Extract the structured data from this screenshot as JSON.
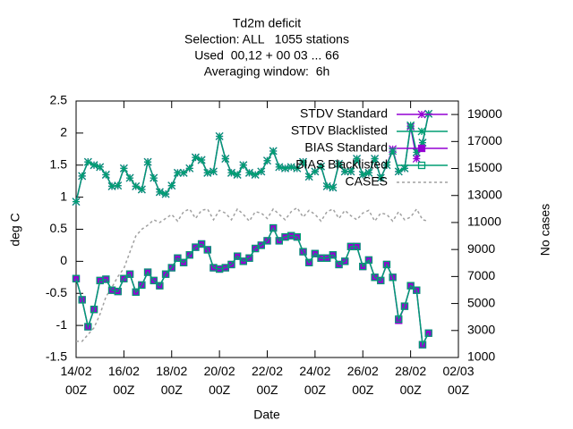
{
  "chart_data": {
    "type": "line",
    "title": [
      "Td2m deficit",
      "Selection: ALL   1055 stations",
      "Used  00,12 + 00 03 ... 66",
      "Averaging window:  6h"
    ],
    "xlabel": "Date",
    "ylabel": "deg C",
    "y2label": "No cases",
    "x": [
      0,
      0.25,
      0.5,
      0.75,
      1,
      1.25,
      1.5,
      1.75,
      2,
      2.25,
      2.5,
      2.75,
      3,
      3.25,
      3.5,
      3.75,
      4,
      4.25,
      4.5,
      4.75,
      5,
      5.25,
      5.5,
      5.75,
      6,
      6.25,
      6.5,
      6.75,
      7,
      7.25,
      7.5,
      7.75,
      8,
      8.25,
      8.5,
      8.75,
      9,
      9.25,
      9.5,
      9.75,
      10,
      10.25,
      10.5,
      10.75,
      11,
      11.25,
      11.5,
      11.75,
      12,
      12.25,
      12.5,
      12.75,
      13,
      13.25,
      13.5,
      13.75,
      14,
      14.25,
      14.5,
      14.75
    ],
    "xlim": [
      0,
      16
    ],
    "xticks": [
      {
        "value": 0,
        "label": "14/02\n00Z"
      },
      {
        "value": 2,
        "label": "16/02\n00Z"
      },
      {
        "value": 4,
        "label": "18/02\n00Z"
      },
      {
        "value": 6,
        "label": "20/02\n00Z"
      },
      {
        "value": 8,
        "label": "22/02\n00Z"
      },
      {
        "value": 10,
        "label": "24/02\n00Z"
      },
      {
        "value": 12,
        "label": "26/02\n00Z"
      },
      {
        "value": 14,
        "label": "28/02\n00Z"
      },
      {
        "value": 16,
        "label": "02/03\n00Z"
      }
    ],
    "ylim": [
      -1.5,
      2.5
    ],
    "yticks": [
      -1.5,
      -1,
      -0.5,
      0,
      0.5,
      1,
      1.5,
      2,
      2.5
    ],
    "y2lim": [
      1000,
      20000
    ],
    "y2ticks": [
      1000,
      3000,
      5000,
      7000,
      9000,
      11000,
      13000,
      15000,
      17000,
      19000
    ],
    "legend": "top-right",
    "series": [
      {
        "name": "STDV Standard",
        "color": "#9400d3",
        "marker": "star",
        "values": [
          0.93,
          1.33,
          1.55,
          1.5,
          1.47,
          1.35,
          1.17,
          1.18,
          1.45,
          1.3,
          1.17,
          1.12,
          1.55,
          1.3,
          1.08,
          1.05,
          1.18,
          1.38,
          1.38,
          1.45,
          1.62,
          1.58,
          1.38,
          1.4,
          1.95,
          1.6,
          1.38,
          1.35,
          1.5,
          1.38,
          1.35,
          1.4,
          1.57,
          1.72,
          1.47,
          1.45,
          1.47,
          1.45,
          1.55,
          1.32,
          1.4,
          1.48,
          1.17,
          1.15,
          1.52,
          1.4,
          1.4,
          1.6,
          1.35,
          1.38,
          1.6,
          1.3,
          1.5,
          1.75,
          1.4,
          1.45,
          2.1,
          1.6,
          1.85,
          2.3
        ]
      },
      {
        "name": "STDV Blacklisted",
        "color": "#009e73",
        "marker": "star",
        "values": [
          0.93,
          1.33,
          1.55,
          1.5,
          1.47,
          1.35,
          1.17,
          1.18,
          1.45,
          1.3,
          1.17,
          1.12,
          1.55,
          1.3,
          1.08,
          1.05,
          1.18,
          1.38,
          1.38,
          1.45,
          1.62,
          1.58,
          1.38,
          1.4,
          1.95,
          1.6,
          1.38,
          1.35,
          1.5,
          1.38,
          1.35,
          1.4,
          1.57,
          1.72,
          1.47,
          1.45,
          1.47,
          1.45,
          1.55,
          1.32,
          1.4,
          1.48,
          1.17,
          1.15,
          1.52,
          1.4,
          1.4,
          1.6,
          1.35,
          1.38,
          1.6,
          1.3,
          1.5,
          1.72,
          1.4,
          1.45,
          2.12,
          1.7,
          1.85,
          2.3
        ]
      },
      {
        "name": "BIAS Standard",
        "color": "#9400d3",
        "marker": "square-filled",
        "values": [
          -0.27,
          -0.6,
          -1.02,
          -0.75,
          -0.3,
          -0.28,
          -0.45,
          -0.47,
          -0.27,
          -0.2,
          -0.48,
          -0.37,
          -0.17,
          -0.3,
          -0.38,
          -0.2,
          -0.1,
          0.05,
          -0.02,
          0.1,
          0.22,
          0.27,
          0.18,
          -0.1,
          -0.12,
          -0.1,
          -0.05,
          0.08,
          0,
          0.05,
          0.2,
          0.25,
          0.32,
          0.52,
          0.32,
          0.38,
          0.4,
          0.38,
          0.15,
          -0.02,
          0.12,
          0.05,
          0.05,
          0.1,
          -0.05,
          0,
          0.23,
          0.23,
          -0.08,
          0.02,
          -0.25,
          -0.3,
          -0.05,
          -0.25,
          -0.92,
          -0.7,
          -0.38,
          -0.45,
          -1.3,
          -1.12
        ]
      },
      {
        "name": "BIAS Blacklisted",
        "color": "#009e73",
        "marker": "square-open",
        "values": [
          -0.27,
          -0.6,
          -1.02,
          -0.75,
          -0.3,
          -0.28,
          -0.45,
          -0.47,
          -0.27,
          -0.2,
          -0.48,
          -0.37,
          -0.17,
          -0.3,
          -0.38,
          -0.2,
          -0.1,
          0.05,
          -0.02,
          0.1,
          0.22,
          0.27,
          0.18,
          -0.1,
          -0.12,
          -0.1,
          -0.05,
          0.08,
          0,
          0.05,
          0.2,
          0.25,
          0.32,
          0.52,
          0.32,
          0.38,
          0.4,
          0.38,
          0.15,
          -0.02,
          0.12,
          0.05,
          0.05,
          0.1,
          -0.05,
          0,
          0.23,
          0.23,
          -0.08,
          0.02,
          -0.25,
          -0.3,
          -0.05,
          -0.25,
          -0.9,
          -0.7,
          -0.38,
          -0.45,
          -1.3,
          -1.12
        ]
      },
      {
        "name": "CASES",
        "color": "#a0a0a0",
        "dash": true,
        "axis": "y2",
        "values": [
          2200,
          2200,
          2700,
          3200,
          4200,
          5500,
          6200,
          7000,
          7600,
          8800,
          10000,
          10500,
          10800,
          11200,
          11000,
          11300,
          11600,
          11100,
          11800,
          12000,
          11300,
          11900,
          12000,
          11200,
          11900,
          11700,
          11200,
          12000,
          11600,
          11100,
          11800,
          11700,
          11300,
          12000,
          11600,
          11200,
          11800,
          12100,
          11400,
          11900,
          11600,
          11100,
          11800,
          12000,
          11300,
          11900,
          11500,
          11200,
          11700,
          11900,
          11100,
          11700,
          11600,
          11100,
          11800,
          11200,
          11400,
          12000,
          11200,
          11100
        ]
      }
    ]
  }
}
